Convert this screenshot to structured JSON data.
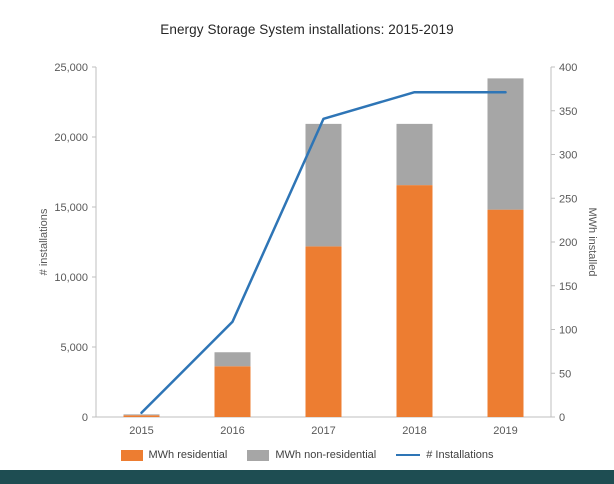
{
  "page": {
    "background": "#FFFFFF",
    "footer_strip_color": "#1E4D52"
  },
  "chart_data": {
    "type": "bar",
    "subtype": "stacked-bar-with-line-combo",
    "title": "Energy Storage System installations: 2015-2019",
    "categories": [
      "2015",
      "2016",
      "2017",
      "2018",
      "2019"
    ],
    "bar_series": [
      {
        "name": "MWh residential",
        "color": "#ED7D31",
        "axis": "right",
        "values": [
          2,
          58,
          195,
          265,
          237
        ]
      },
      {
        "name": "MWh non-residential",
        "color": "#A6A6A6",
        "axis": "right",
        "values": [
          1,
          16,
          140,
          70,
          150
        ]
      }
    ],
    "line_series": [
      {
        "name": "# Installations",
        "color": "#2E75B6",
        "axis": "left",
        "values": [
          300,
          6800,
          21300,
          23200,
          23200
        ]
      }
    ],
    "left_axis": {
      "label": "# installations",
      "min": 0,
      "max": 25000,
      "step": 5000,
      "tick_labels": [
        "0",
        "5,000",
        "10,000",
        "15,000",
        "20,000",
        "25,000"
      ]
    },
    "right_axis": {
      "label": "MWh installed",
      "min": 0,
      "max": 400,
      "step": 50,
      "tick_labels": [
        "0",
        "50",
        "100",
        "150",
        "200",
        "250",
        "300",
        "350",
        "400"
      ]
    },
    "legend_position": "bottom",
    "gridlines": false,
    "axis_line_color": "#BFBFBF",
    "tick_label_color": "#595959"
  }
}
